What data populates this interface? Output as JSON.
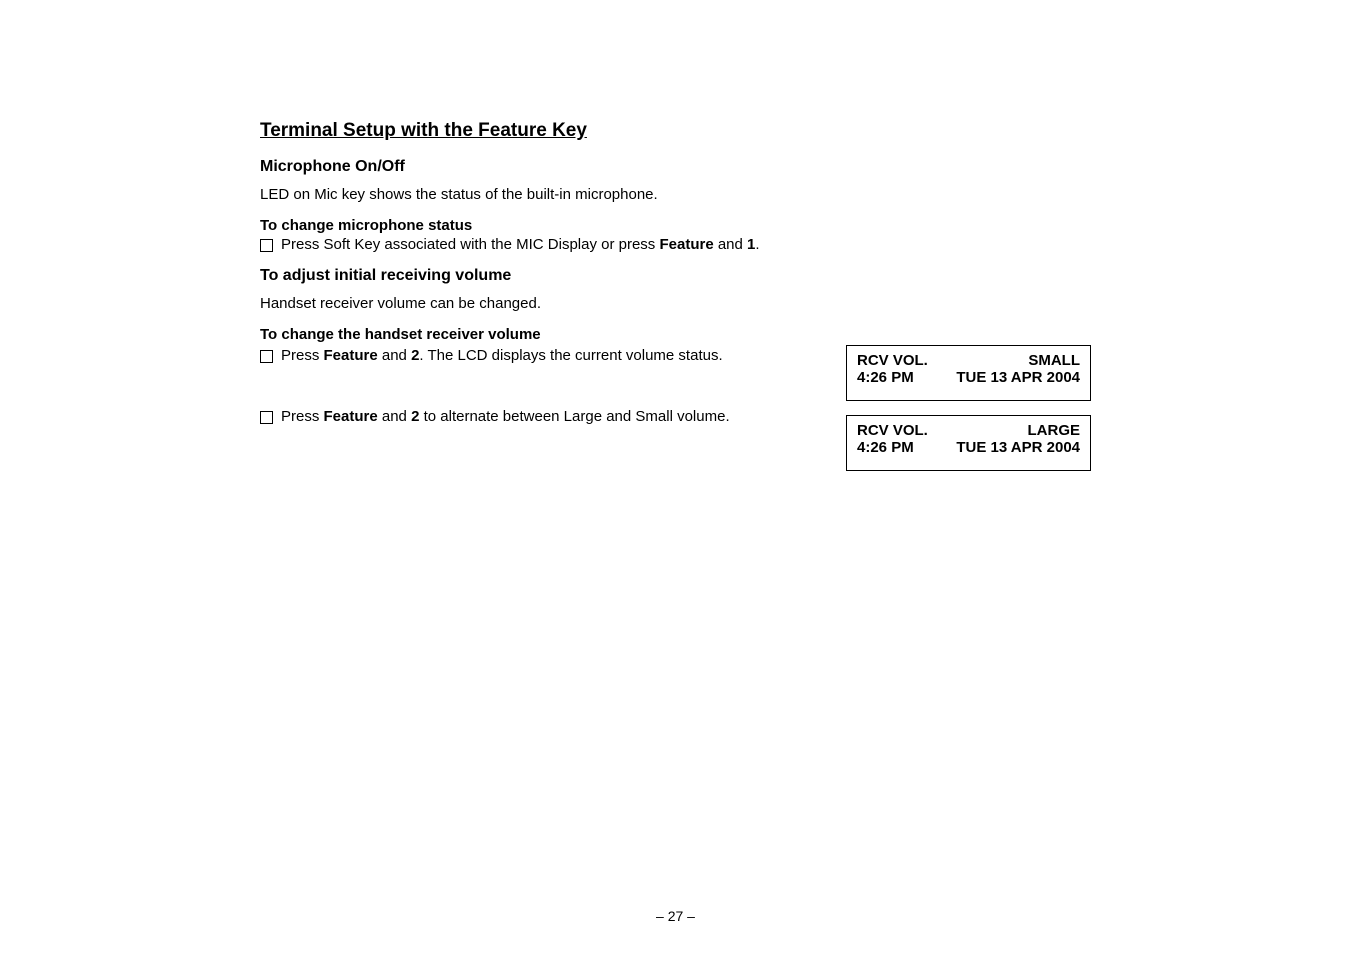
{
  "section": {
    "title": "Terminal Setup with the Feature Key"
  },
  "mic": {
    "heading": "Microphone On/Off",
    "desc": "LED on Mic key shows the status of the built-in microphone.",
    "change_heading": "To change microphone status",
    "step1_pre": "Press Soft Key associated with the MIC Display or press ",
    "step1_b1": "Feature",
    "step1_mid": " and ",
    "step1_b2": "1",
    "step1_post": "."
  },
  "vol": {
    "heading": "To adjust initial receiving volume",
    "desc": "Handset receiver volume can be changed.",
    "change_heading": "To change the handset receiver volume",
    "step1_pre": "Press ",
    "step1_b1": "Feature",
    "step1_mid1": " and ",
    "step1_b2": "2",
    "step1_post": ". The LCD displays the current volume status.",
    "step2_pre": "Press ",
    "step2_b1": "Feature",
    "step2_mid1": " and ",
    "step2_b2": "2",
    "step2_post": " to alternate between Large and Small volume."
  },
  "lcd_small": {
    "label": "RCV VOL.",
    "value": "SMALL",
    "time": "4:26 PM",
    "date": "TUE 13  APR 2004"
  },
  "lcd_large": {
    "label": "RCV VOL.",
    "value": "LARGE",
    "time": "4:26 PM",
    "date": "TUE 13  APR 2004"
  },
  "footer": {
    "page": "– 27 –"
  }
}
